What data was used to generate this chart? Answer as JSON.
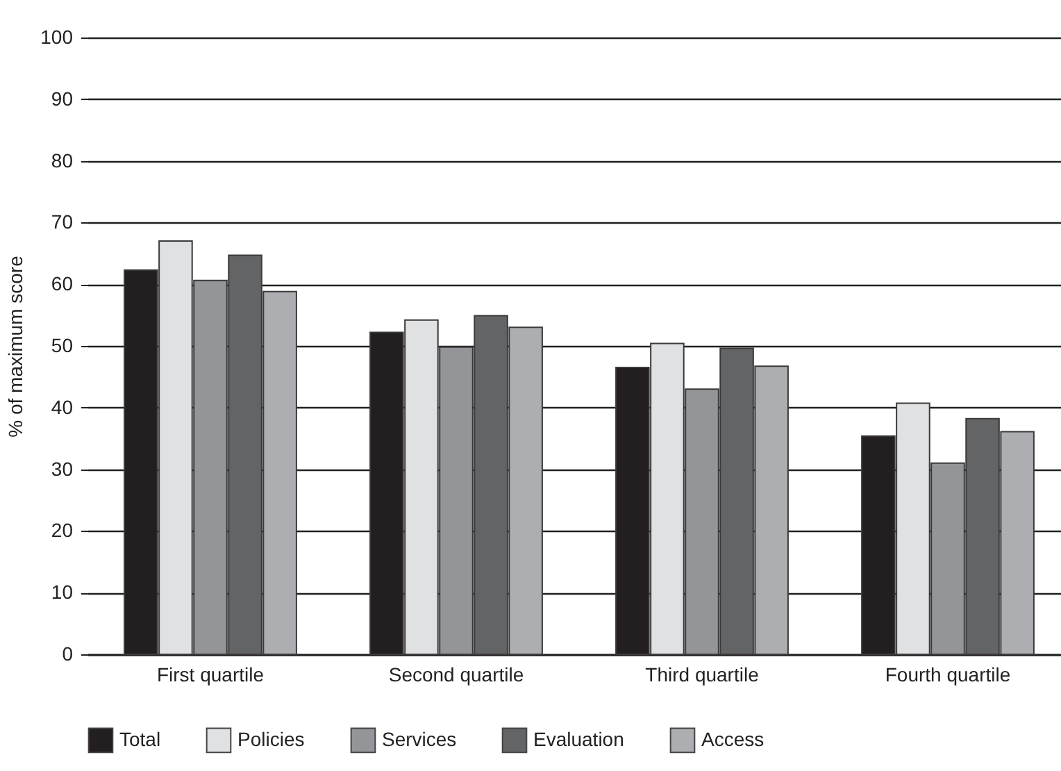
{
  "chart_data": {
    "type": "bar",
    "ylabel": "% of maximum score",
    "categories": [
      "First quartile",
      "Second quartile",
      "Third quartile",
      "Fourth quartile"
    ],
    "series": [
      {
        "name": "Total",
        "color": "#231f20",
        "values": [
          62.3,
          52.2,
          46.5,
          35.4
        ]
      },
      {
        "name": "Policies",
        "color": "#e0e1e3",
        "values": [
          67,
          54.2,
          50.4,
          40.7
        ]
      },
      {
        "name": "Services",
        "color": "#939598",
        "values": [
          60.6,
          49.8,
          43,
          31
        ]
      },
      {
        "name": "Evaluation",
        "color": "#636466",
        "values": [
          64.7,
          54.9,
          49.6,
          38.2
        ]
      },
      {
        "name": "Access",
        "color": "#adaeb1",
        "values": [
          58.8,
          53,
          46.7,
          36.1
        ]
      }
    ],
    "ylim": [
      0,
      100
    ],
    "yticks": [
      0,
      10,
      20,
      30,
      40,
      50,
      60,
      70,
      80,
      90,
      100
    ],
    "grid": "y",
    "legend": "bottom"
  }
}
